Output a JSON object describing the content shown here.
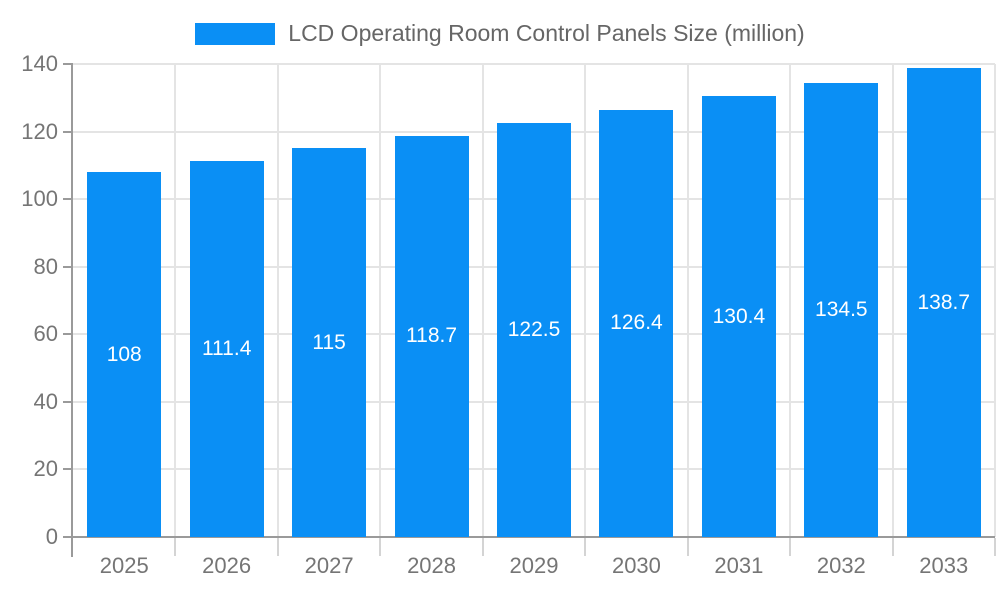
{
  "chart_data": {
    "type": "bar",
    "title": "LCD Operating Room Control Panels Size (million)",
    "categories": [
      "2025",
      "2026",
      "2027",
      "2028",
      "2029",
      "2030",
      "2031",
      "2032",
      "2033"
    ],
    "values": [
      108,
      111.4,
      115,
      118.7,
      122.5,
      126.4,
      130.4,
      134.5,
      138.7
    ],
    "xlabel": "",
    "ylabel": "",
    "ylim": [
      0,
      140
    ],
    "ytick_step": 20,
    "grid": "on",
    "legend_position": "top-center",
    "bar_color": "#0a8ff5",
    "value_label_color": "#ffffff",
    "axis_text_color": "#757575",
    "title_color": "#666666"
  }
}
